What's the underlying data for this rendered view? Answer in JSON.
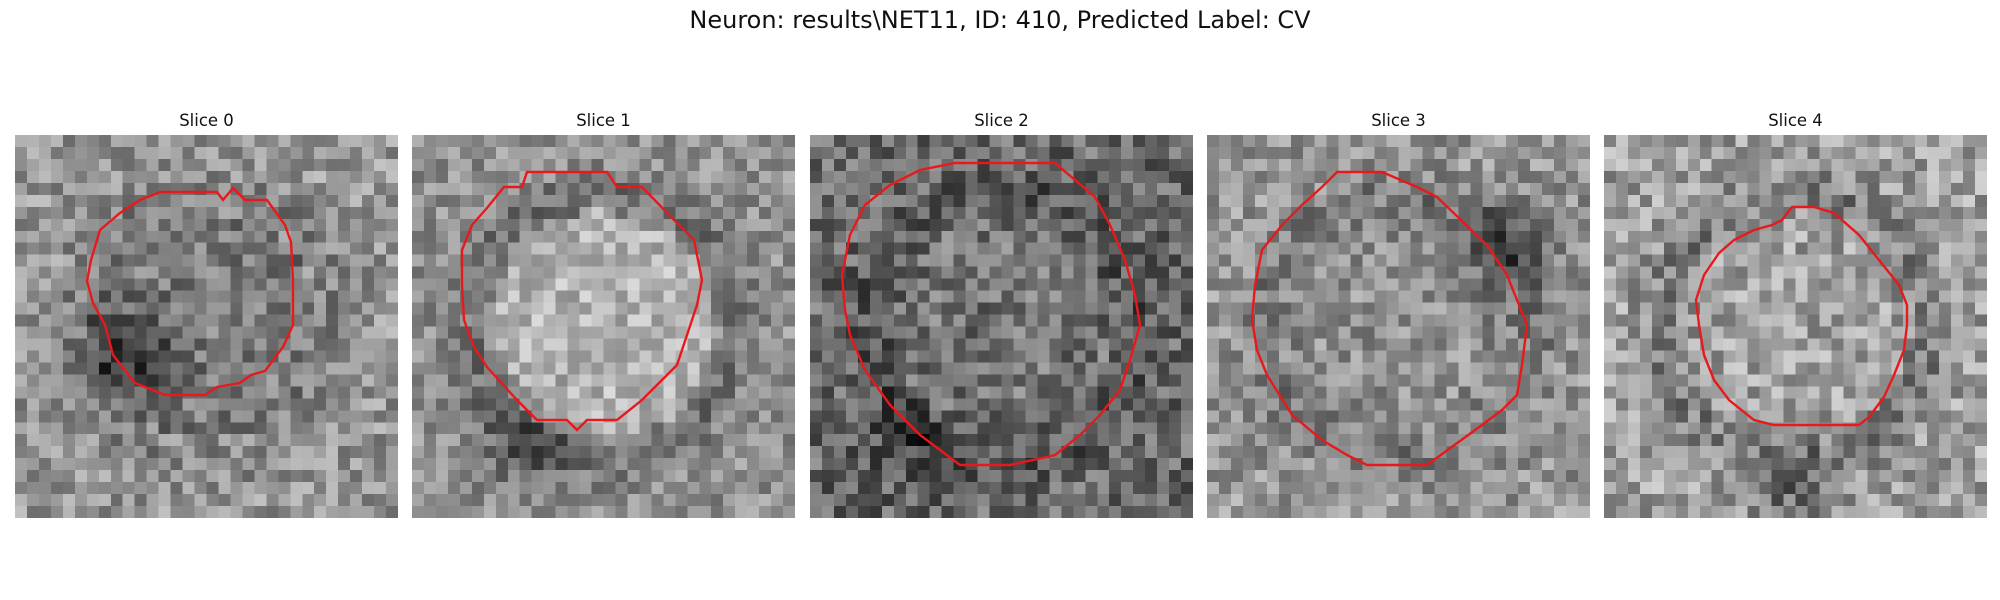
{
  "figure": {
    "title": "Neuron: results\\NET11, ID: 410, Predicted Label: CV",
    "contour_color": "#e8191c"
  },
  "panels": [
    {
      "title": "Slice 0"
    },
    {
      "title": "Slice 1"
    },
    {
      "title": "Slice 2"
    },
    {
      "title": "Slice 3"
    },
    {
      "title": "Slice 4"
    }
  ]
}
